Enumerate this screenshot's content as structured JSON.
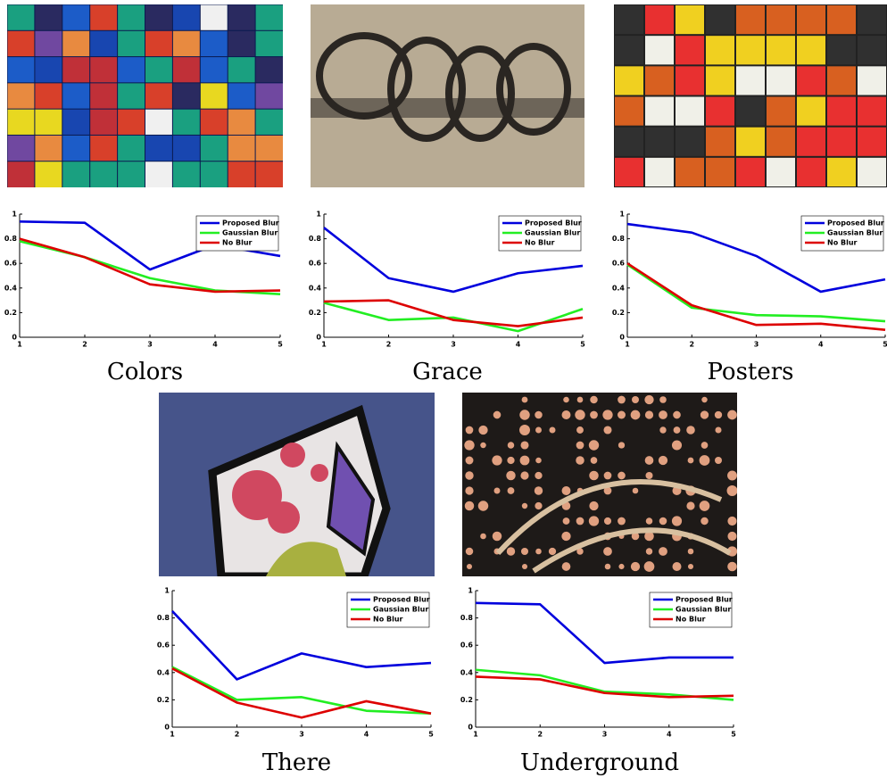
{
  "chart_data": [
    {
      "type": "line",
      "title": "Colors",
      "x": [
        1,
        2,
        3,
        4,
        5
      ],
      "xlim": [
        1,
        5
      ],
      "ylim": [
        0,
        1
      ],
      "xticks": [
        1,
        2,
        3,
        4,
        5
      ],
      "yticks": [
        0,
        0.2,
        0.4,
        0.6,
        0.8,
        1
      ],
      "legend": "upper right",
      "series": [
        {
          "name": "Proposed Blur",
          "color": "#0000dd",
          "values": [
            0.94,
            0.93,
            0.55,
            0.75,
            0.66
          ]
        },
        {
          "name": "Gaussian Blur",
          "color": "#22ee22",
          "values": [
            0.78,
            0.65,
            0.48,
            0.38,
            0.35
          ]
        },
        {
          "name": "No Blur",
          "color": "#dd0000",
          "values": [
            0.8,
            0.65,
            0.43,
            0.37,
            0.38
          ]
        }
      ]
    },
    {
      "type": "line",
      "title": "Grace",
      "x": [
        1,
        2,
        3,
        4,
        5
      ],
      "xlim": [
        1,
        5
      ],
      "ylim": [
        0,
        1
      ],
      "xticks": [
        1,
        2,
        3,
        4,
        5
      ],
      "yticks": [
        0,
        0.2,
        0.4,
        0.6,
        0.8,
        1
      ],
      "legend": "upper right",
      "series": [
        {
          "name": "Proposed Blur",
          "color": "#0000dd",
          "values": [
            0.89,
            0.48,
            0.37,
            0.52,
            0.58
          ]
        },
        {
          "name": "Gaussian Blur",
          "color": "#22ee22",
          "values": [
            0.28,
            0.14,
            0.16,
            0.05,
            0.23
          ]
        },
        {
          "name": "No Blur",
          "color": "#dd0000",
          "values": [
            0.29,
            0.3,
            0.14,
            0.09,
            0.16
          ]
        }
      ]
    },
    {
      "type": "line",
      "title": "Posters",
      "x": [
        1,
        2,
        3,
        4,
        5
      ],
      "xlim": [
        1,
        5
      ],
      "ylim": [
        0,
        1
      ],
      "xticks": [
        1,
        2,
        3,
        4,
        5
      ],
      "yticks": [
        0,
        0.2,
        0.4,
        0.6,
        0.8,
        1
      ],
      "legend": "upper right",
      "series": [
        {
          "name": "Proposed Blur",
          "color": "#0000dd",
          "values": [
            0.92,
            0.85,
            0.66,
            0.37,
            0.47
          ]
        },
        {
          "name": "Gaussian Blur",
          "color": "#22ee22",
          "values": [
            0.59,
            0.24,
            0.18,
            0.17,
            0.13
          ]
        },
        {
          "name": "No Blur",
          "color": "#dd0000",
          "values": [
            0.6,
            0.26,
            0.1,
            0.11,
            0.06
          ]
        }
      ]
    },
    {
      "type": "line",
      "title": "There",
      "x": [
        1,
        2,
        3,
        4,
        5
      ],
      "xlim": [
        1,
        5
      ],
      "ylim": [
        0,
        1
      ],
      "xticks": [
        1,
        2,
        3,
        4,
        5
      ],
      "yticks": [
        0,
        0.2,
        0.4,
        0.6,
        0.8,
        1
      ],
      "legend": "upper right",
      "series": [
        {
          "name": "Proposed Blur",
          "color": "#0000dd",
          "values": [
            0.85,
            0.35,
            0.54,
            0.44,
            0.47
          ]
        },
        {
          "name": "Gaussian Blur",
          "color": "#22ee22",
          "values": [
            0.44,
            0.2,
            0.22,
            0.12,
            0.1
          ]
        },
        {
          "name": "No Blur",
          "color": "#dd0000",
          "values": [
            0.43,
            0.18,
            0.07,
            0.19,
            0.1
          ]
        }
      ]
    },
    {
      "type": "line",
      "title": "Underground",
      "x": [
        1,
        2,
        3,
        4,
        5
      ],
      "xlim": [
        1,
        5
      ],
      "ylim": [
        0,
        1
      ],
      "xticks": [
        1,
        2,
        3,
        4,
        5
      ],
      "yticks": [
        0,
        0.2,
        0.4,
        0.6,
        0.8,
        1
      ],
      "legend": "upper right",
      "series": [
        {
          "name": "Proposed Blur",
          "color": "#0000dd",
          "values": [
            0.91,
            0.9,
            0.47,
            0.51,
            0.51
          ]
        },
        {
          "name": "Gaussian Blur",
          "color": "#22ee22",
          "values": [
            0.42,
            0.38,
            0.26,
            0.24,
            0.2
          ]
        },
        {
          "name": "No Blur",
          "color": "#dd0000",
          "values": [
            0.37,
            0.35,
            0.25,
            0.22,
            0.23
          ]
        }
      ]
    }
  ]
}
